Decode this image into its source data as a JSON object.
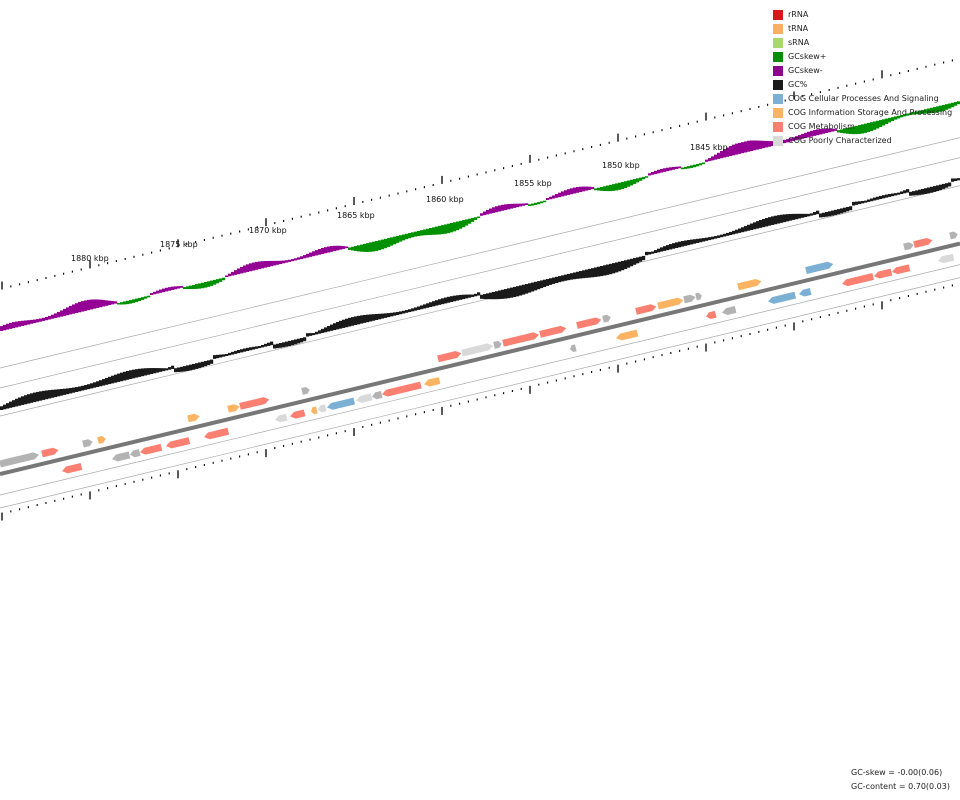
{
  "legend": {
    "items": [
      {
        "label": "rRNA",
        "color": "#d7191c"
      },
      {
        "label": "tRNA",
        "color": "#fdae61"
      },
      {
        "label": "sRNA",
        "color": "#a6d96a"
      },
      {
        "label": "GCskew+",
        "color": "#008f00"
      },
      {
        "label": "GCskew-",
        "color": "#8f008f"
      },
      {
        "label": "GC%",
        "color": "#1a1a1a"
      },
      {
        "label": "COG Cellular Processes And Signaling",
        "color": "#7bafd4"
      },
      {
        "label": "COG Information Storage And Processing",
        "color": "#fdb462"
      },
      {
        "label": "COG Metabolism",
        "color": "#fb8072"
      },
      {
        "label": "COG Poorly Characterized",
        "color": "#d9d9d9"
      }
    ]
  },
  "ticks": {
    "labels": [
      "1880 kbp",
      "1875 kbp",
      "1870 kbp",
      "1865 kbp",
      "1860 kbp",
      "1855 kbp",
      "1850 kbp",
      "1845 kbp"
    ]
  },
  "stats": {
    "gc_skew": "GC-skew = -0.00(0.06)",
    "gc_content": "GC-content = 0.70(0.03)"
  },
  "colors": {
    "skew_pos": "#009100",
    "skew_neg": "#930093",
    "gc": "#1a1a1a",
    "backbone": "#777777",
    "guide": "#aaaaaa",
    "unknown_gene": "#b3b3b3"
  }
}
